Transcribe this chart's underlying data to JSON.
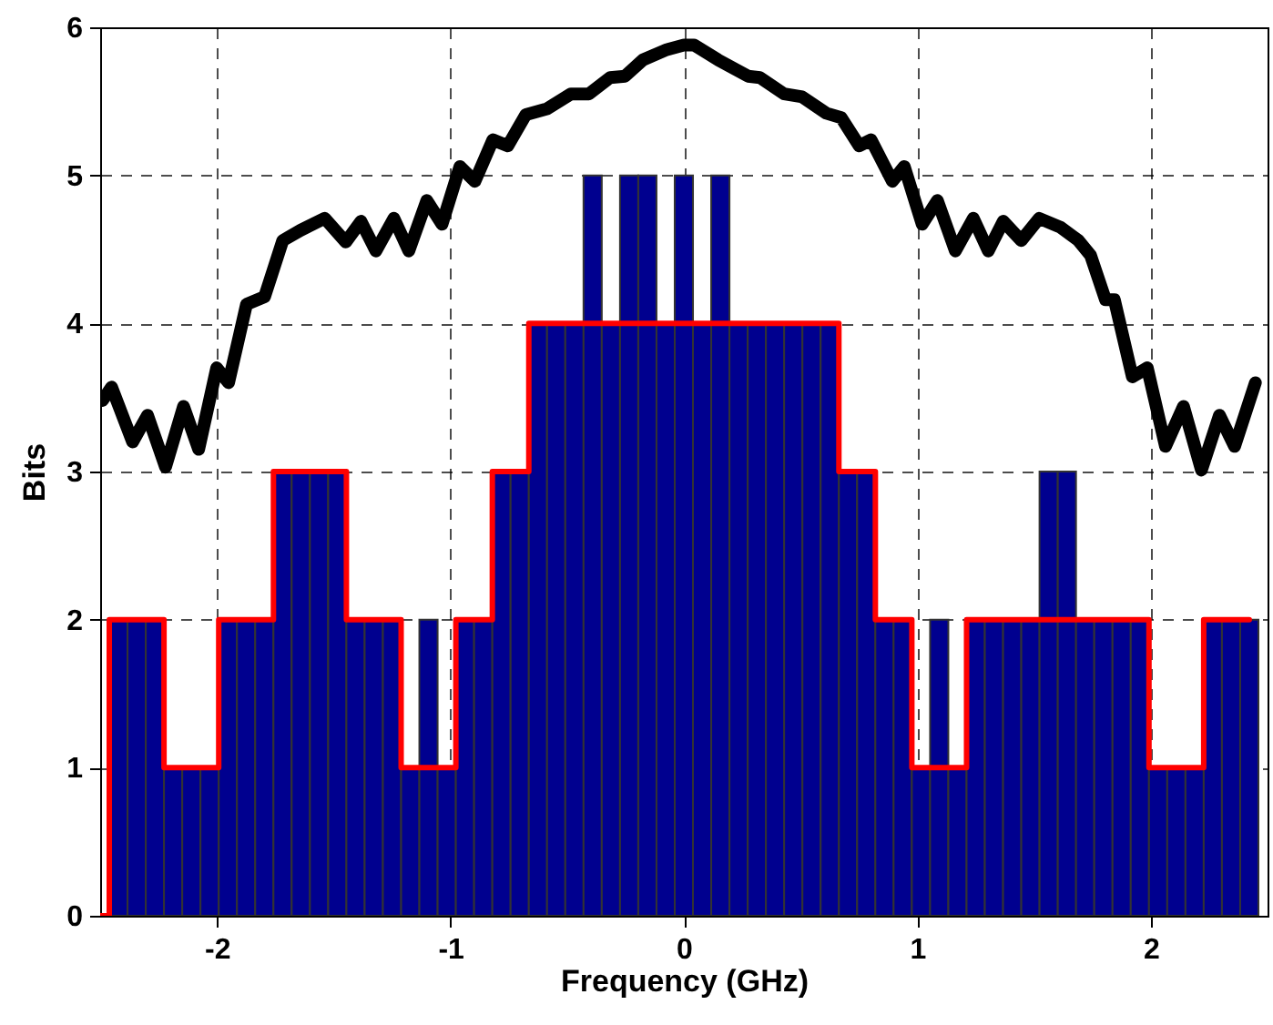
{
  "chart_data": {
    "type": "bar",
    "xlabel": "Frequency (GHz)",
    "ylabel": "Bits",
    "x": [
      -2.5,
      -2.421875,
      -2.34375,
      -2.265625,
      -2.1875,
      -2.109375,
      -2.03125,
      -1.953125,
      -1.875,
      -1.796875,
      -1.71875,
      -1.640625,
      -1.5625,
      -1.484375,
      -1.40625,
      -1.328125,
      -1.25,
      -1.171875,
      -1.09375,
      -1.015625,
      -0.9375,
      -0.859375,
      -0.78125,
      -0.703125,
      -0.625,
      -0.546875,
      -0.46875,
      -0.390625,
      -0.3125,
      -0.234375,
      -0.15625,
      -0.078125,
      0,
      0.078125,
      0.15625,
      0.234375,
      0.3125,
      0.390625,
      0.46875,
      0.546875,
      0.625,
      0.703125,
      0.78125,
      0.859375,
      0.9375,
      1.015625,
      1.09375,
      1.171875,
      1.25,
      1.328125,
      1.40625,
      1.484375,
      1.5625,
      1.640625,
      1.71875,
      1.796875,
      1.875,
      1.953125,
      2.03125,
      2.109375,
      2.1875,
      2.265625,
      2.34375,
      2.421875
    ],
    "series": [
      {
        "color": "#00008f",
        "values": [
          null,
          2,
          2,
          2,
          1,
          1,
          1,
          2,
          2,
          2,
          3,
          3,
          3,
          3,
          2,
          2,
          2,
          1,
          2,
          1,
          2,
          2,
          3,
          3,
          4,
          4,
          4,
          5,
          4,
          5,
          5,
          4,
          5,
          4,
          5,
          4,
          4,
          4,
          4,
          4,
          4,
          3,
          3,
          2,
          2,
          1,
          2,
          1,
          2,
          2,
          2,
          2,
          3,
          3,
          2,
          2,
          2,
          2,
          1,
          1,
          1,
          2,
          2,
          2
        ]
      },
      {
        "type": "step",
        "color": "#ff0000",
        "values": [
          0,
          2,
          2,
          2,
          1,
          1,
          1,
          2,
          2,
          2,
          3,
          3,
          3,
          3,
          2,
          2,
          2,
          1,
          1,
          1,
          2,
          2,
          3,
          3,
          4,
          4,
          4,
          4,
          4,
          4,
          4,
          4,
          4,
          4,
          4,
          4,
          4,
          4,
          4,
          4,
          4,
          3,
          3,
          2,
          2,
          1,
          1,
          1,
          2,
          2,
          2,
          2,
          2,
          2,
          2,
          2,
          2,
          2,
          1,
          1,
          1,
          2,
          2,
          2
        ]
      },
      {
        "type": "line",
        "color": "#000000",
        "x": [
          -2.49,
          -2.451,
          -2.361,
          -2.297,
          -2.22,
          -2.143,
          -2.078,
          -2.001,
          -1.95,
          -1.873,
          -1.796,
          -1.718,
          -1.641,
          -1.538,
          -1.448,
          -1.383,
          -1.319,
          -1.242,
          -1.178,
          -1.101,
          -1.036,
          -0.959,
          -0.895,
          -0.818,
          -0.754,
          -0.677,
          -0.586,
          -0.484,
          -0.407,
          -0.316,
          -0.252,
          -0.175,
          -0.072,
          0,
          0.044,
          0.147,
          0.275,
          0.326,
          0.43,
          0.507,
          0.61,
          0.674,
          0.751,
          0.802,
          0.893,
          0.944,
          1.021,
          1.086,
          1.163,
          1.24,
          1.304,
          1.368,
          1.445,
          1.522,
          1.613,
          1.69,
          1.742,
          1.806,
          1.844,
          1.921,
          1.985,
          2.063,
          2.14,
          2.217,
          2.294,
          2.359,
          2.448
        ],
        "values": [
          3.48,
          3.57,
          3.2,
          3.38,
          3.03,
          3.44,
          3.15,
          3.7,
          3.6,
          4.13,
          4.18,
          4.56,
          4.63,
          4.71,
          4.55,
          4.69,
          4.49,
          4.71,
          4.49,
          4.83,
          4.67,
          5.06,
          4.96,
          5.24,
          5.2,
          5.41,
          5.45,
          5.55,
          5.55,
          5.66,
          5.67,
          5.78,
          5.85,
          5.88,
          5.88,
          5.78,
          5.67,
          5.66,
          5.55,
          5.53,
          5.42,
          5.39,
          5.2,
          5.24,
          4.96,
          5.06,
          4.67,
          4.83,
          4.49,
          4.71,
          4.49,
          4.69,
          4.56,
          4.71,
          4.65,
          4.56,
          4.46,
          4.16,
          4.16,
          3.64,
          3.7,
          3.17,
          3.44,
          3.01,
          3.38,
          3.17,
          3.6
        ]
      }
    ],
    "xlim": [
      -2.5,
      2.5
    ],
    "xticks": [
      -2,
      -1,
      0,
      1,
      2
    ],
    "ylim": [
      0,
      6
    ],
    "yticks": [
      0,
      1,
      2,
      3,
      4,
      5,
      6
    ],
    "grid": true
  }
}
